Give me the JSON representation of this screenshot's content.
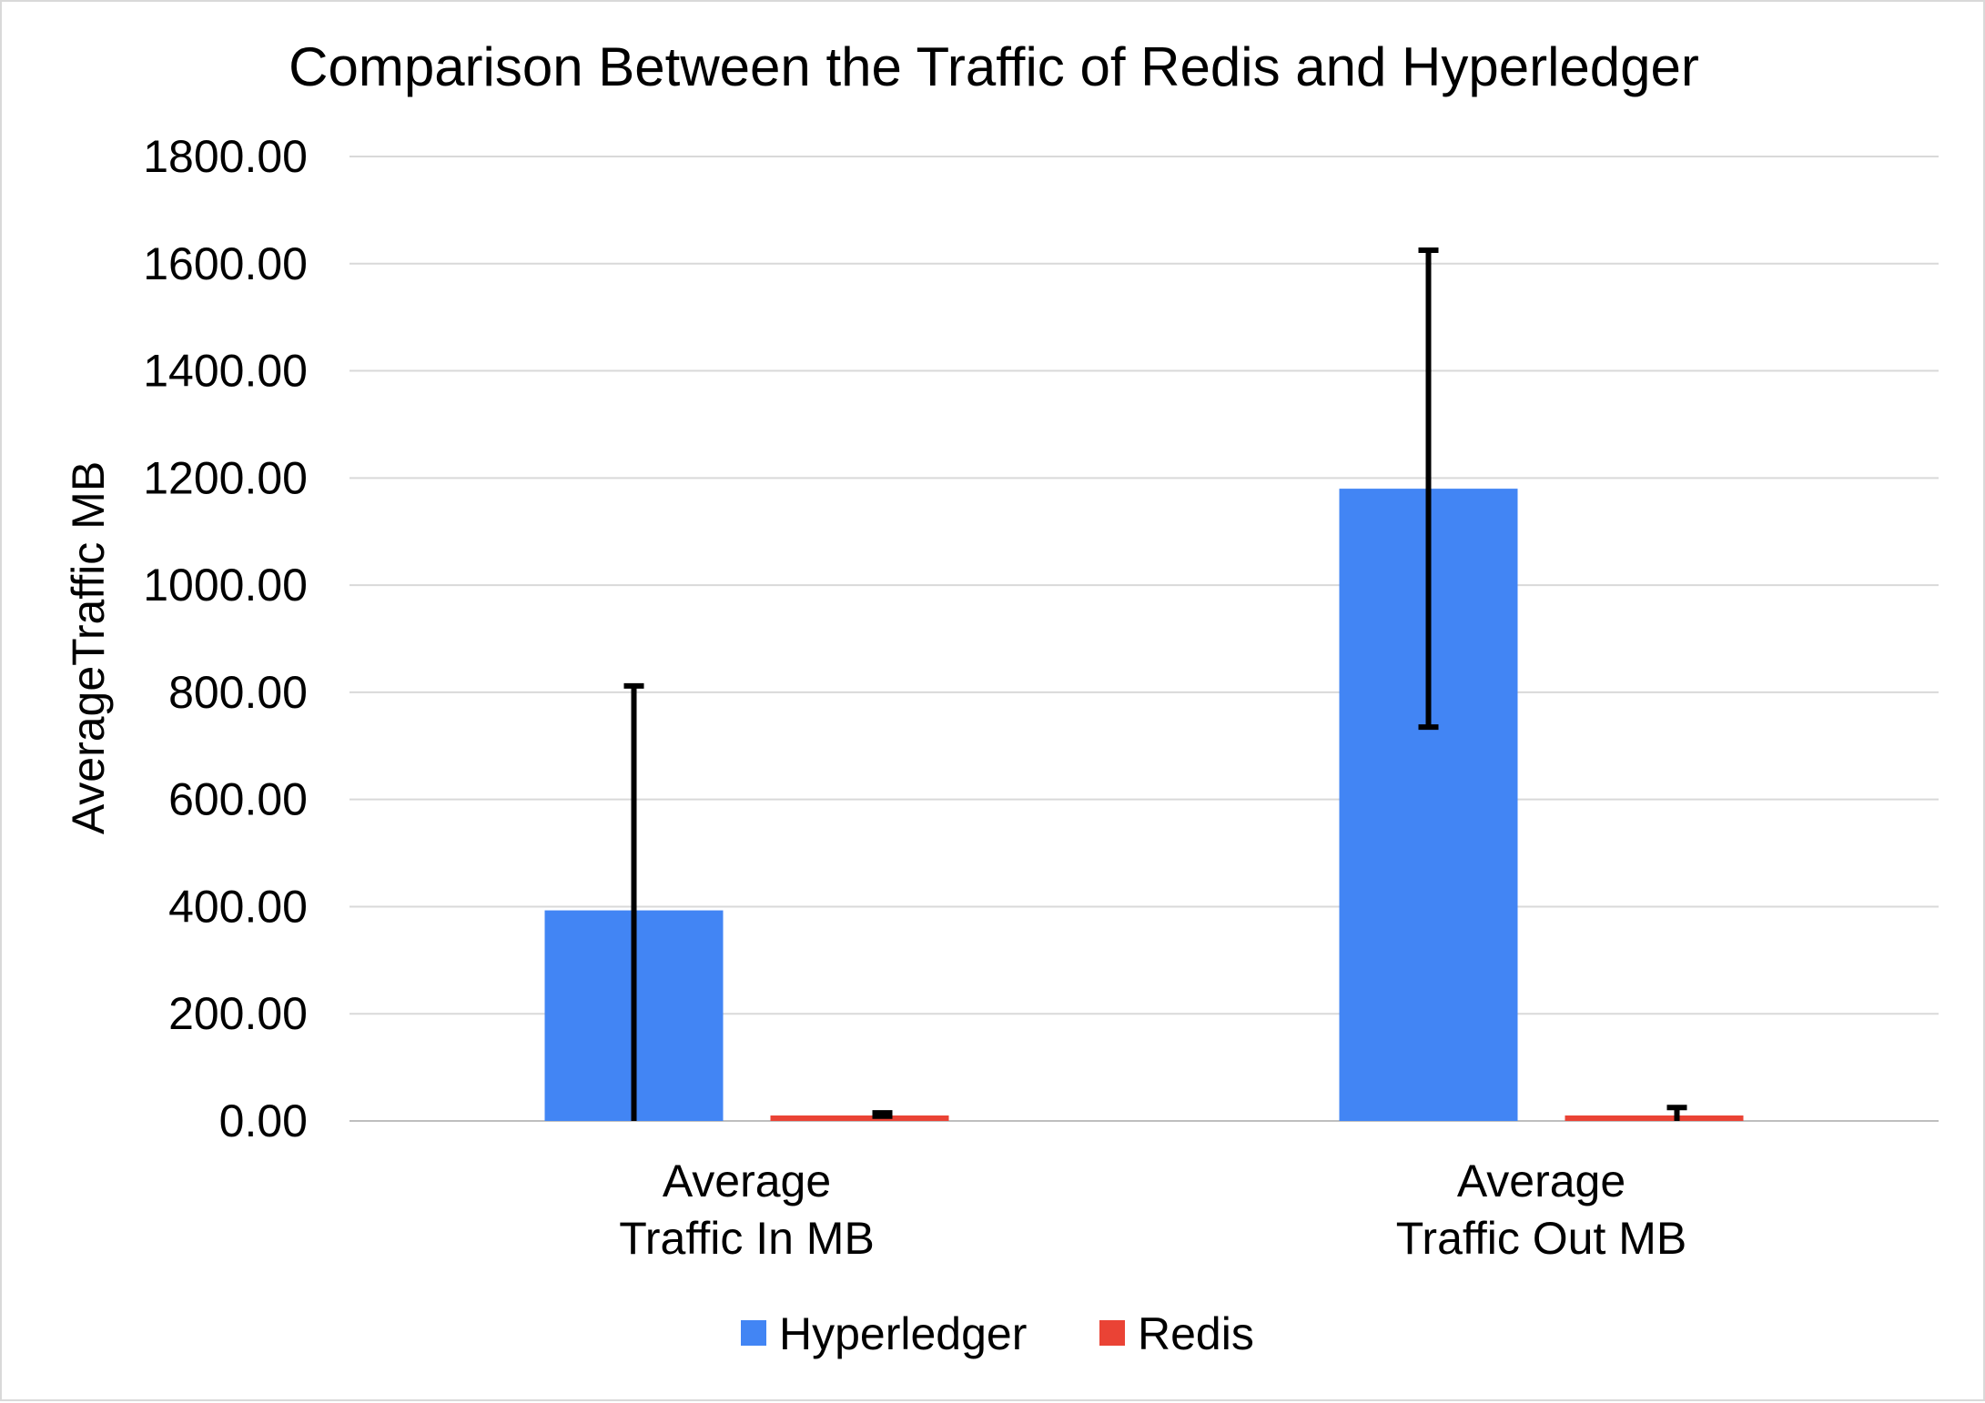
{
  "colors": {
    "hyperledger": "#4285f4",
    "redis": "#ea4335",
    "error_bar": "#000000"
  },
  "chart_data": {
    "type": "bar",
    "title": "Comparison Between the Traffic of Redis and Hyperledger",
    "xlabel": "",
    "ylabel": "AverageTraffic MB",
    "ylim": [
      0,
      1800
    ],
    "yticks": [
      "1800.00",
      "1600.00",
      "1400.00",
      "1200.00",
      "1000.00",
      "800.00",
      "600.00",
      "400.00",
      "200.00",
      "0.00"
    ],
    "categories": [
      [
        "Average",
        "Traffic In MB"
      ],
      [
        "Average",
        "Traffic Out MB"
      ]
    ],
    "series": [
      {
        "name": "Hyperledger",
        "color": "#4285f4",
        "values": [
          393,
          1180
        ],
        "error_low": [
          0,
          735
        ],
        "error_high": [
          812,
          1625
        ]
      },
      {
        "name": "Redis",
        "color": "#ea4335",
        "values": [
          10,
          8
        ],
        "error_low": [
          9,
          0
        ],
        "error_high": [
          15,
          25
        ]
      }
    ],
    "grid": true,
    "legend": "bottom"
  }
}
